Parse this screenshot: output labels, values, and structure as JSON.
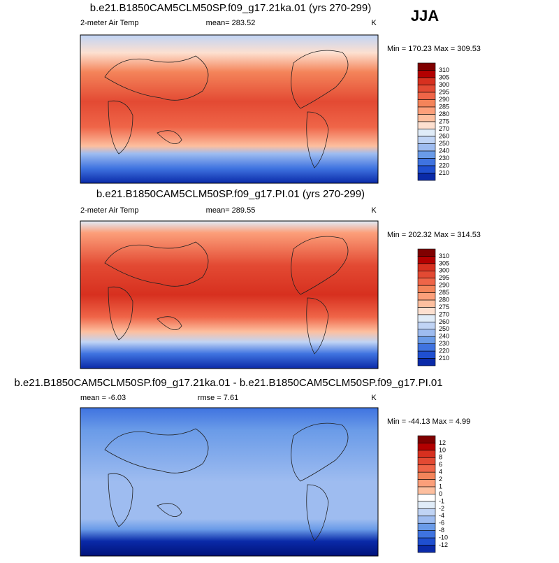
{
  "season": "JJA",
  "panels": [
    {
      "title": "b.e21.B1850CAM5CLM50SP.f09_g17.21ka.01 (yrs 270-299)",
      "left_label": "2-meter Air Temp",
      "center_label": "mean= 283.52",
      "units": "K",
      "minmax": "Min = 170.23 Max = 309.53",
      "colorbar_labels": [
        310,
        305,
        300,
        295,
        290,
        285,
        280,
        275,
        270,
        260,
        250,
        240,
        230,
        220,
        210
      ]
    },
    {
      "title": "b.e21.B1850CAM5CLM50SP.f09_g17.PI.01 (yrs 270-299)",
      "left_label": "2-meter Air Temp",
      "center_label": "mean= 289.55",
      "units": "K",
      "minmax": "Min = 202.32 Max = 314.53",
      "colorbar_labels": [
        310,
        305,
        300,
        295,
        290,
        285,
        280,
        275,
        270,
        260,
        250,
        240,
        230,
        220,
        210
      ]
    },
    {
      "title": "b.e21.B1850CAM5CLM50SP.f09_g17.21ka.01 - b.e21.B1850CAM5CLM50SP.f09_g17.PI.01",
      "left_label": "mean =  -6.03",
      "center_label": "rmse =  7.61",
      "units": "K",
      "minmax": "Min = -44.13 Max =   4.99",
      "colorbar_labels": [
        12,
        10,
        8,
        6,
        4,
        2,
        1,
        0,
        -1,
        -2,
        -4,
        -6,
        -8,
        -10,
        -12
      ]
    }
  ]
}
